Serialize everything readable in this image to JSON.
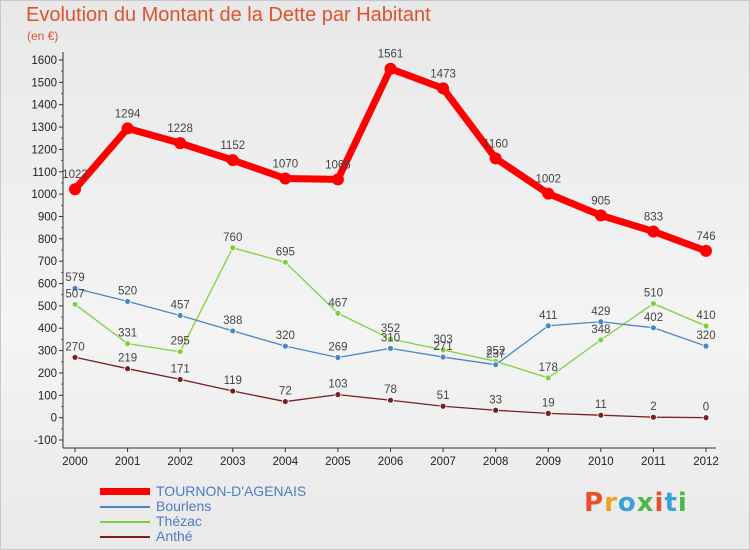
{
  "title": "Evolution du Montant de la Dette par Habitant",
  "unit_label": "(en €)",
  "logo": {
    "text": "Proxiti",
    "colors": [
      "#e8502a",
      "#f0a020",
      "#3aa0d8",
      "#4cb848",
      "#e8502a",
      "#3aa0d8",
      "#4cb848"
    ]
  },
  "chart_data": {
    "type": "line",
    "title": "Evolution du Montant de la Dette par Habitant",
    "ylabel": "(en €)",
    "xlabel": "",
    "categories": [
      "2000",
      "2001",
      "2002",
      "2003",
      "2004",
      "2005",
      "2006",
      "2007",
      "2008",
      "2009",
      "2010",
      "2011",
      "2012"
    ],
    "ylim": [
      -100,
      1600
    ],
    "yticks": [
      -100,
      0,
      100,
      200,
      300,
      400,
      500,
      600,
      700,
      800,
      900,
      1000,
      1100,
      1200,
      1300,
      1400,
      1500,
      1600
    ],
    "grid": false,
    "legend_position": "bottom-left",
    "series": [
      {
        "name": "TOURNON-D'AGENAIS",
        "color": "#ff0000",
        "values": [
          1022,
          1294,
          1228,
          1152,
          1070,
          1066,
          1561,
          1473,
          1160,
          1002,
          905,
          833,
          746
        ]
      },
      {
        "name": "Bourlens",
        "color": "#4a86c8",
        "values": [
          579,
          520,
          457,
          388,
          320,
          269,
          310,
          271,
          237,
          411,
          429,
          402,
          320
        ]
      },
      {
        "name": "Thézac",
        "color": "#7fd13b",
        "values": [
          507,
          331,
          295,
          760,
          695,
          467,
          352,
          303,
          252,
          178,
          348,
          510,
          410
        ]
      },
      {
        "name": "Anthé",
        "color": "#7a1f1f",
        "values": [
          270,
          219,
          171,
          119,
          72,
          103,
          78,
          51,
          33,
          19,
          11,
          2,
          0
        ]
      }
    ]
  }
}
